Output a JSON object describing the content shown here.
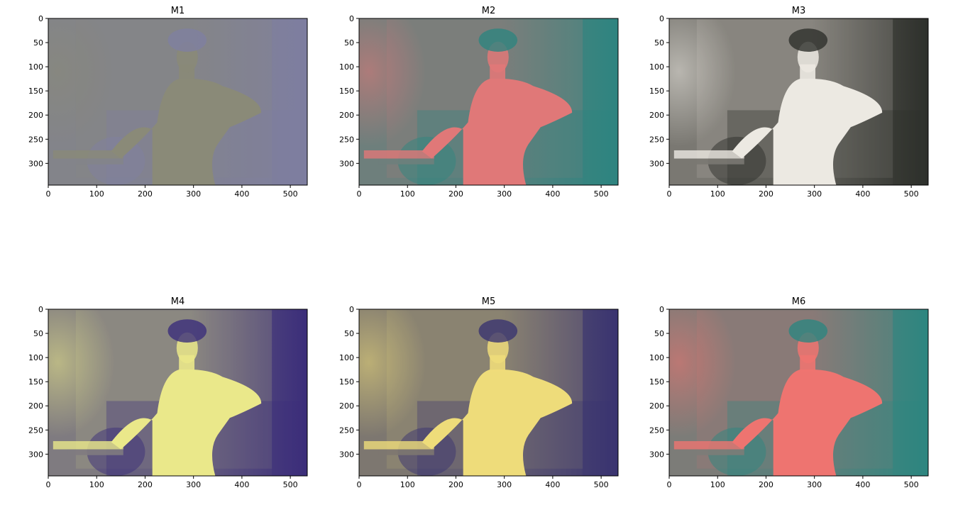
{
  "chart_data": [
    {
      "type": "heatmap",
      "title": "M1",
      "xlim": [
        0,
        535
      ],
      "ylim": [
        345,
        0
      ],
      "xticks": [
        "0",
        "100",
        "200",
        "300",
        "400",
        "500"
      ],
      "yticks": [
        "0",
        "50",
        "100",
        "150",
        "200",
        "250",
        "300"
      ],
      "colors": {
        "shadow": "#7f7fa0",
        "mid": "#83848a",
        "light": "#8a8a78"
      }
    },
    {
      "type": "heatmap",
      "title": "M2",
      "xlim": [
        0,
        535
      ],
      "ylim": [
        345,
        0
      ],
      "xticks": [
        "0",
        "100",
        "200",
        "300",
        "400",
        "500"
      ],
      "yticks": [
        "0",
        "50",
        "100",
        "150",
        "200",
        "250",
        "300"
      ],
      "colors": {
        "shadow": "#2f8580",
        "mid": "#6e7f7c",
        "light": "#e07878"
      }
    },
    {
      "type": "heatmap",
      "title": "M3",
      "xlim": [
        0,
        535
      ],
      "ylim": [
        345,
        0
      ],
      "xticks": [
        "0",
        "100",
        "200",
        "300",
        "400",
        "500"
      ],
      "yticks": [
        "0",
        "50",
        "100",
        "150",
        "200",
        "250",
        "300"
      ],
      "colors": {
        "shadow": "#2e302c",
        "mid": "#7a7872",
        "light": "#ece9e2"
      }
    },
    {
      "type": "heatmap",
      "title": "M4",
      "xlim": [
        0,
        535
      ],
      "ylim": [
        345,
        0
      ],
      "xticks": [
        "0",
        "100",
        "200",
        "300",
        "400",
        "500"
      ],
      "yticks": [
        "0",
        "50",
        "100",
        "150",
        "200",
        "250",
        "300"
      ],
      "colors": {
        "shadow": "#3b2e7a",
        "mid": "#7f7b80",
        "light": "#eae88a"
      }
    },
    {
      "type": "heatmap",
      "title": "M5",
      "xlim": [
        0,
        535
      ],
      "ylim": [
        345,
        0
      ],
      "xticks": [
        "0",
        "100",
        "200",
        "300",
        "400",
        "500"
      ],
      "yticks": [
        "0",
        "50",
        "100",
        "150",
        "200",
        "250",
        "300"
      ],
      "colors": {
        "shadow": "#3a3470",
        "mid": "#7d7770",
        "light": "#eedc7a"
      }
    },
    {
      "type": "heatmap",
      "title": "M6",
      "xlim": [
        0,
        535
      ],
      "ylim": [
        345,
        0
      ],
      "xticks": [
        "0",
        "100",
        "200",
        "300",
        "400",
        "500"
      ],
      "yticks": [
        "0",
        "50",
        "100",
        "150",
        "200",
        "250",
        "300"
      ],
      "colors": {
        "shadow": "#2e8680",
        "mid": "#7c7c78",
        "light": "#ee7470"
      }
    }
  ]
}
